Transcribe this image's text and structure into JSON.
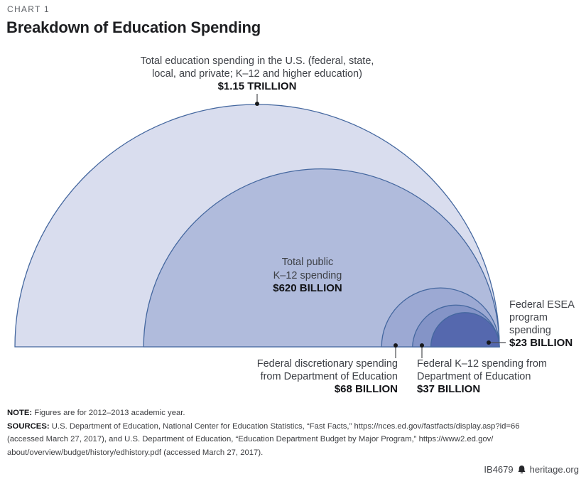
{
  "header": {
    "kicker": "CHART 1",
    "title": "Breakdown of Education Spending"
  },
  "chart_data": {
    "type": "pie",
    "subtype": "nested-proportional-semicircles-right-tangent",
    "title": "Breakdown of Education Spending",
    "units": "billions of U.S. dollars",
    "legend": "none",
    "grid": false,
    "stroke": "#44679f",
    "segments": [
      {
        "id": "total-education",
        "label": "Total education spending in the U.S. (federal, state, local, and private; K–12 and higher education)",
        "value_billion": 1150,
        "value_label": "$1.15 TRILLION",
        "fill": "#d9ddee"
      },
      {
        "id": "public-k12",
        "label": "Total public K–12 spending",
        "value_billion": 620,
        "value_label": "$620 BILLION",
        "fill": "#b0bbdc"
      },
      {
        "id": "federal-discretionary",
        "label": "Federal discretionary spending from Department of Education",
        "value_billion": 68,
        "value_label": "$68 BILLION",
        "fill": "#9ca9d3"
      },
      {
        "id": "federal-k12",
        "label": "Federal K–12 spending from Department of Education",
        "value_billion": 37,
        "value_label": "$37 BILLION",
        "fill": "#8494c7"
      },
      {
        "id": "federal-esea",
        "label": "Federal ESEA program spending",
        "value_billion": 23,
        "value_label": "$23 BILLION",
        "fill": "#5568ae"
      }
    ]
  },
  "annotations": {
    "total": {
      "line1": "Total education spending in the U.S. (federal, state,",
      "line2": "local, and private; K–12 and higher education)",
      "amount": "$1.15 TRILLION"
    },
    "public_k12": {
      "line1": "Total public",
      "line2": "K–12 spending",
      "amount": "$620 BILLION"
    },
    "esea": {
      "line1": "Federal ESEA",
      "line2": "program",
      "line3": "spending",
      "amount": "$23 BILLION"
    },
    "discretionary": {
      "line1": "Federal discretionary spending",
      "line2": "from Department of Education",
      "amount": "$68 BILLION"
    },
    "federal_k12": {
      "line1": "Federal K–12 spending from",
      "line2": "Department of Education",
      "amount": "$37 BILLION"
    }
  },
  "footnotes": {
    "note_label": "NOTE:",
    "note_text": " Figures are for 2012–2013 academic year.",
    "sources_label": "SOURCES:",
    "sources_line1": " U.S. Department of Education, National Center for Education Statistics, “Fast Facts,” https://nces.ed.gov/fastfacts/display.asp?id=66",
    "sources_line2": "(accessed March 27, 2017), and U.S. Department of Education, “Education Department Budget by Major Program,” https://www2.ed.gov/",
    "sources_line3": "about/overview/budget/history/edhistory.pdf (accessed March 27, 2017)."
  },
  "footer": {
    "report_id": "IB4679",
    "site": "heritage.org",
    "logo": "heritage-bell-icon"
  }
}
